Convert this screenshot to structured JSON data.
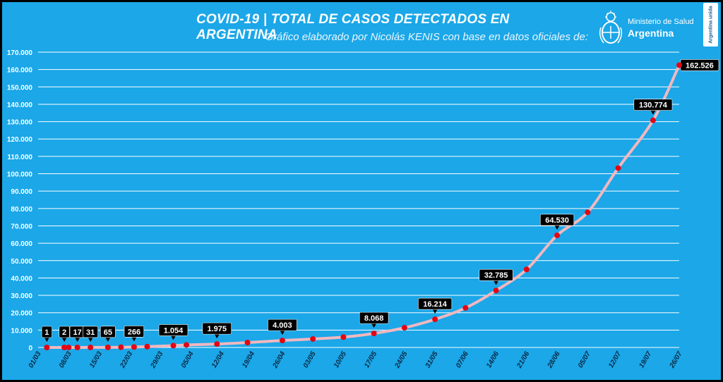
{
  "header": {
    "title": "COVID-19  |  TOTAL DE CASOS DETECTADOS EN ARGENTINA",
    "subtitle": "Gráfico elaborado por Nicolás KENIS con base en datos oficiales de:"
  },
  "logo": {
    "ministry": "Ministerio de Salud",
    "country": "Argentina",
    "tag": "Argentina unida"
  },
  "colors": {
    "background": "#1ba7e8",
    "line": "#f2b8bf",
    "marker": "#e30613",
    "label_box": "#000000",
    "grid": "#ffffff"
  },
  "chart_data": {
    "type": "line",
    "title": "COVID-19  |  TOTAL DE CASOS DETECTADOS EN ARGENTINA",
    "ylim": [
      0,
      170000
    ],
    "grid": true,
    "yticks": [
      "0",
      "10.000",
      "20.000",
      "30.000",
      "40.000",
      "50.000",
      "60.000",
      "70.000",
      "80.000",
      "90.000",
      "100.000",
      "110.000",
      "120.000",
      "130.000",
      "140.000",
      "150.000",
      "160.000",
      "170.000"
    ],
    "xticks": [
      "01/03",
      "08/03",
      "15/03",
      "22/03",
      "29/03",
      "05/04",
      "12/04",
      "19/04",
      "26/04",
      "03/05",
      "10/05",
      "17/05",
      "24/05",
      "31/05",
      "07/06",
      "14/06",
      "21/06",
      "28/06",
      "05/07",
      "12/07",
      "19/07",
      "26/07"
    ],
    "series": [
      {
        "points": [
          {
            "date": "03/03",
            "value": 1
          },
          {
            "date": "07/03",
            "value": 2
          },
          {
            "date": "08/03",
            "value": 12
          },
          {
            "date": "10/03",
            "value": 17
          },
          {
            "date": "13/03",
            "value": 31
          },
          {
            "date": "17/03",
            "value": 65
          },
          {
            "date": "20/03",
            "value": 128
          },
          {
            "date": "23/03",
            "value": 266
          },
          {
            "date": "26/03",
            "value": 502
          },
          {
            "date": "01/04",
            "value": 1054
          },
          {
            "date": "04/04",
            "value": 1451
          },
          {
            "date": "11/04",
            "value": 1975
          },
          {
            "date": "18/04",
            "value": 2839
          },
          {
            "date": "26/04",
            "value": 4003
          },
          {
            "date": "03/05",
            "value": 4887
          },
          {
            "date": "10/05",
            "value": 5963
          },
          {
            "date": "17/05",
            "value": 8068
          },
          {
            "date": "24/05",
            "value": 11353
          },
          {
            "date": "31/05",
            "value": 16214
          },
          {
            "date": "07/06",
            "value": 22794
          },
          {
            "date": "14/06",
            "value": 32785
          },
          {
            "date": "21/06",
            "value": 44931
          },
          {
            "date": "28/06",
            "value": 64530
          },
          {
            "date": "05/07",
            "value": 77815
          },
          {
            "date": "12/07",
            "value": 103265
          },
          {
            "date": "20/07",
            "value": 130774
          },
          {
            "date": "26/07",
            "value": 162526
          }
        ]
      }
    ],
    "data_labels": [
      {
        "date": "03/03",
        "value": 1,
        "text": "1"
      },
      {
        "date": "07/03",
        "value": 2,
        "text": "2"
      },
      {
        "date": "10/03",
        "value": 17,
        "text": "17"
      },
      {
        "date": "13/03",
        "value": 31,
        "text": "31"
      },
      {
        "date": "17/03",
        "value": 65,
        "text": "65"
      },
      {
        "date": "23/03",
        "value": 266,
        "text": "266"
      },
      {
        "date": "01/04",
        "value": 1054,
        "text": "1.054"
      },
      {
        "date": "11/04",
        "value": 1975,
        "text": "1.975"
      },
      {
        "date": "26/04",
        "value": 4003,
        "text": "4.003"
      },
      {
        "date": "17/05",
        "value": 8068,
        "text": "8.068"
      },
      {
        "date": "31/05",
        "value": 16214,
        "text": "16.214"
      },
      {
        "date": "14/06",
        "value": 32785,
        "text": "32.785"
      },
      {
        "date": "28/06",
        "value": 64530,
        "text": "64.530"
      },
      {
        "date": "20/07",
        "value": 130774,
        "text": "130.774"
      },
      {
        "date": "26/07",
        "value": 162526,
        "text": "162.526"
      }
    ]
  }
}
